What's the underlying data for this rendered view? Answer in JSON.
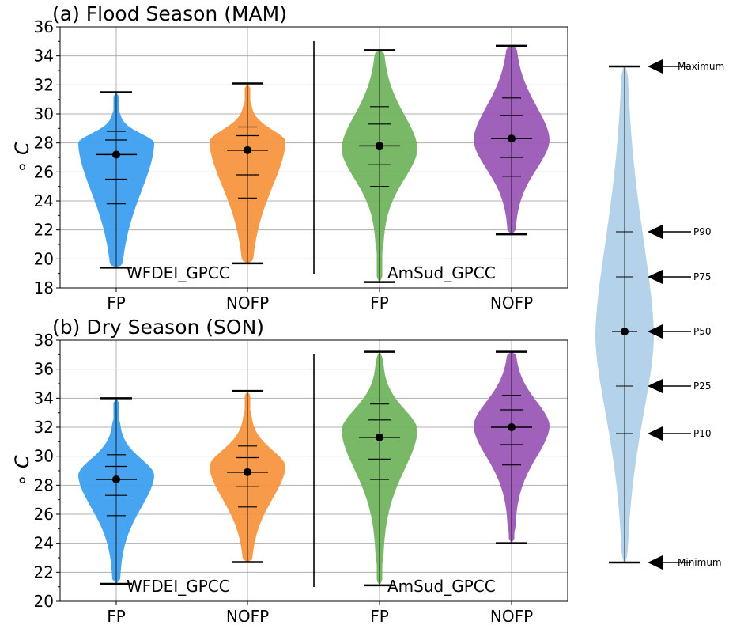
{
  "chart_data": [
    {
      "type": "violin",
      "title": "(a) Flood Season (MAM)",
      "ylabel": "∘ C",
      "ylim": [
        18,
        36
      ],
      "yticks": [
        18,
        20,
        22,
        24,
        26,
        28,
        30,
        32,
        34,
        36
      ],
      "categories": [
        "FP",
        "NOFP",
        "FP",
        "NOFP"
      ],
      "groups": [
        "WFDEI_GPCC",
        "AmSud_GPCC"
      ],
      "series": [
        {
          "group": "WFDEI_GPCC",
          "category": "FP",
          "color": "#3d9ff0",
          "min": 19.4,
          "p10": 23.8,
          "p25": 25.5,
          "p50": 27.2,
          "p75": 28.2,
          "p90": 28.8,
          "max": 31.5,
          "mode": 28.0
        },
        {
          "group": "WFDEI_GPCC",
          "category": "NOFP",
          "color": "#f79540",
          "min": 19.7,
          "p10": 24.2,
          "p25": 25.8,
          "p50": 27.5,
          "p75": 28.5,
          "p90": 29.1,
          "max": 32.1,
          "mode": 28.1
        },
        {
          "group": "AmSud_GPCC",
          "category": "FP",
          "color": "#72b45f",
          "min": 18.4,
          "p10": 25.0,
          "p25": 26.5,
          "p50": 27.8,
          "p75": 29.3,
          "p90": 30.5,
          "max": 34.4,
          "mode": 27.6
        },
        {
          "group": "AmSud_GPCC",
          "category": "NOFP",
          "color": "#9a58b6",
          "min": 21.7,
          "p10": 25.7,
          "p25": 27.0,
          "p50": 28.3,
          "p75": 29.9,
          "p90": 31.1,
          "max": 34.7,
          "mode": 28.2
        }
      ]
    },
    {
      "type": "violin",
      "title": "(b) Dry Season (SON)",
      "ylabel": "∘ C",
      "ylim": [
        20,
        38
      ],
      "yticks": [
        20,
        22,
        24,
        26,
        28,
        30,
        32,
        34,
        36,
        38
      ],
      "categories": [
        "FP",
        "NOFP",
        "FP",
        "NOFP"
      ],
      "groups": [
        "WFDEI_GPCC",
        "AmSud_GPCC"
      ],
      "series": [
        {
          "group": "WFDEI_GPCC",
          "category": "FP",
          "color": "#3d9ff0",
          "min": 21.2,
          "p10": 25.9,
          "p25": 27.3,
          "p50": 28.4,
          "p75": 29.3,
          "p90": 30.1,
          "max": 34.0,
          "mode": 28.7
        },
        {
          "group": "WFDEI_GPCC",
          "category": "NOFP",
          "color": "#f79540",
          "min": 22.7,
          "p10": 26.5,
          "p25": 27.9,
          "p50": 28.9,
          "p75": 29.9,
          "p90": 30.7,
          "max": 34.5,
          "mode": 29.3
        },
        {
          "group": "AmSud_GPCC",
          "category": "FP",
          "color": "#72b45f",
          "min": 21.1,
          "p10": 28.4,
          "p25": 29.8,
          "p50": 31.3,
          "p75": 32.5,
          "p90": 33.6,
          "max": 37.2,
          "mode": 31.8
        },
        {
          "group": "AmSud_GPCC",
          "category": "NOFP",
          "color": "#9a58b6",
          "min": 24.0,
          "p10": 29.4,
          "p25": 30.8,
          "p50": 32.0,
          "p75": 33.2,
          "p90": 34.2,
          "max": 37.2,
          "mode": 32.1
        }
      ]
    }
  ],
  "legend": {
    "color": "#b4d3ea",
    "labels": [
      "Maximum",
      "P90",
      "P75",
      "P50",
      "P25",
      "P10",
      "Minimum"
    ]
  }
}
